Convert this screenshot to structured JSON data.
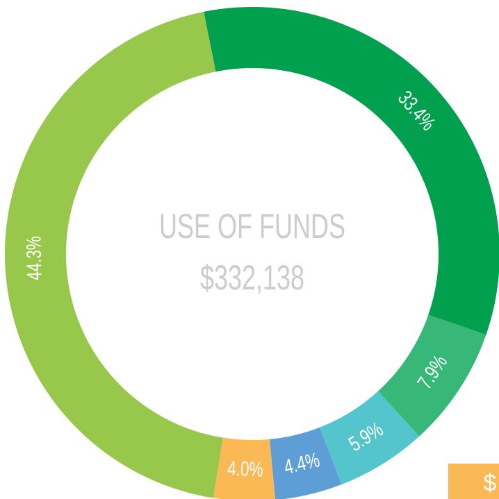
{
  "chart_data": {
    "type": "donut",
    "title": "USE OF FUNDS",
    "subtitle": "$332,138",
    "values": [
      33.4,
      7.9,
      5.9,
      4.4,
      4.0,
      44.3
    ],
    "value_labels": [
      "33.4%",
      "7.9%",
      "5.9%",
      "4.4%",
      "4.0%",
      "44.3%"
    ],
    "colors": [
      "#00a04f",
      "#38b878",
      "#55c5cd",
      "#5e9ed6",
      "#fbb955",
      "#97c74b"
    ],
    "badge": "$"
  }
}
